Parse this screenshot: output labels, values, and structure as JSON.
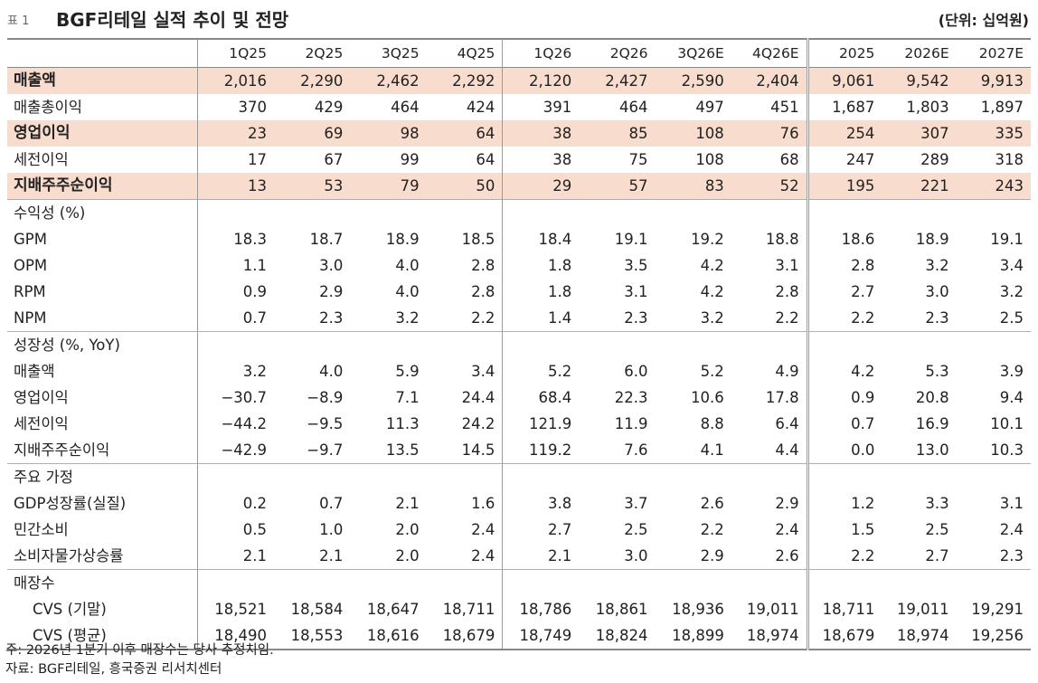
{
  "header": {
    "table_label": "표 1",
    "title": "BGF리테일 실적 추이 및 전망",
    "unit": "(단위: 십억원)"
  },
  "columns": [
    "",
    "1Q25",
    "2Q25",
    "3Q25",
    "4Q25",
    "1Q26",
    "2Q26",
    "3Q26E",
    "4Q26E",
    "2025",
    "2026E",
    "2027E"
  ],
  "rows": [
    {
      "label": "매출액",
      "values": [
        "2,016",
        "2,290",
        "2,462",
        "2,292",
        "2,120",
        "2,427",
        "2,590",
        "2,404",
        "9,061",
        "9,542",
        "9,913"
      ]
    },
    {
      "label": "매출총이익",
      "values": [
        "370",
        "429",
        "464",
        "424",
        "391",
        "464",
        "497",
        "451",
        "1,687",
        "1,803",
        "1,897"
      ]
    },
    {
      "label": "영업이익",
      "values": [
        "23",
        "69",
        "98",
        "64",
        "38",
        "85",
        "108",
        "76",
        "254",
        "307",
        "335"
      ]
    },
    {
      "label": "세전이익",
      "values": [
        "17",
        "67",
        "99",
        "64",
        "38",
        "75",
        "108",
        "68",
        "247",
        "289",
        "318"
      ]
    },
    {
      "label": "지배주주순이익",
      "values": [
        "13",
        "53",
        "79",
        "50",
        "29",
        "57",
        "83",
        "52",
        "195",
        "221",
        "243"
      ]
    },
    {
      "label": "수익성 (%)",
      "values": [
        "",
        "",
        "",
        "",
        "",
        "",
        "",
        "",
        "",
        "",
        ""
      ]
    },
    {
      "label": "GPM",
      "values": [
        "18.3",
        "18.7",
        "18.9",
        "18.5",
        "18.4",
        "19.1",
        "19.2",
        "18.8",
        "18.6",
        "18.9",
        "19.1"
      ]
    },
    {
      "label": "OPM",
      "values": [
        "1.1",
        "3.0",
        "4.0",
        "2.8",
        "1.8",
        "3.5",
        "4.2",
        "3.1",
        "2.8",
        "3.2",
        "3.4"
      ]
    },
    {
      "label": "RPM",
      "values": [
        "0.9",
        "2.9",
        "4.0",
        "2.8",
        "1.8",
        "3.1",
        "4.2",
        "2.8",
        "2.7",
        "3.0",
        "3.2"
      ]
    },
    {
      "label": "NPM",
      "values": [
        "0.7",
        "2.3",
        "3.2",
        "2.2",
        "1.4",
        "2.3",
        "3.2",
        "2.2",
        "2.2",
        "2.3",
        "2.5"
      ]
    },
    {
      "label": "성장성 (%, YoY)",
      "values": [
        "",
        "",
        "",
        "",
        "",
        "",
        "",
        "",
        "",
        "",
        ""
      ]
    },
    {
      "label": "매출액",
      "values": [
        "3.2",
        "4.0",
        "5.9",
        "3.4",
        "5.2",
        "6.0",
        "5.2",
        "4.9",
        "4.2",
        "5.3",
        "3.9"
      ]
    },
    {
      "label": "영업이익",
      "values": [
        "−30.7",
        "−8.9",
        "7.1",
        "24.4",
        "68.4",
        "22.3",
        "10.6",
        "17.8",
        "0.9",
        "20.8",
        "9.4"
      ]
    },
    {
      "label": "세전이익",
      "values": [
        "−44.2",
        "−9.5",
        "11.3",
        "24.2",
        "121.9",
        "11.9",
        "8.8",
        "6.4",
        "0.7",
        "16.9",
        "10.1"
      ]
    },
    {
      "label": "지배주주순이익",
      "values": [
        "−42.9",
        "−9.7",
        "13.5",
        "14.5",
        "119.2",
        "7.6",
        "4.1",
        "4.4",
        "0.0",
        "13.0",
        "10.3"
      ]
    },
    {
      "label": "주요 가정",
      "values": [
        "",
        "",
        "",
        "",
        "",
        "",
        "",
        "",
        "",
        "",
        ""
      ]
    },
    {
      "label": "GDP성장률(실질)",
      "values": [
        "0.2",
        "0.7",
        "2.1",
        "1.6",
        "3.8",
        "3.7",
        "2.6",
        "2.9",
        "1.2",
        "3.3",
        "3.1"
      ]
    },
    {
      "label": "민간소비",
      "values": [
        "0.5",
        "1.0",
        "2.0",
        "2.4",
        "2.7",
        "2.5",
        "2.2",
        "2.4",
        "1.5",
        "2.5",
        "2.4"
      ]
    },
    {
      "label": "소비자물가상승률",
      "values": [
        "2.1",
        "2.1",
        "2.0",
        "2.4",
        "2.1",
        "3.0",
        "2.9",
        "2.6",
        "2.2",
        "2.7",
        "2.3"
      ]
    },
    {
      "label": "매장수",
      "values": [
        "",
        "",
        "",
        "",
        "",
        "",
        "",
        "",
        "",
        "",
        ""
      ]
    },
    {
      "label": "CVS (기말)",
      "values": [
        "18,521",
        "18,584",
        "18,647",
        "18,711",
        "18,786",
        "18,861",
        "18,936",
        "19,011",
        "18,711",
        "19,011",
        "19,291"
      ]
    },
    {
      "label": "CVS (평균)",
      "values": [
        "18,490",
        "18,553",
        "18,616",
        "18,679",
        "18,749",
        "18,824",
        "18,899",
        "18,974",
        "18,679",
        "18,974",
        "19,256"
      ]
    }
  ],
  "notes": {
    "note": "주: 2026년 1분기 이후 매장수는 당사 추정치임.",
    "source": "자료: BGF리테일, 흥국증권 리서치센터"
  },
  "colors": {
    "highlight_row": "#f8dccd",
    "border": "#888888"
  }
}
